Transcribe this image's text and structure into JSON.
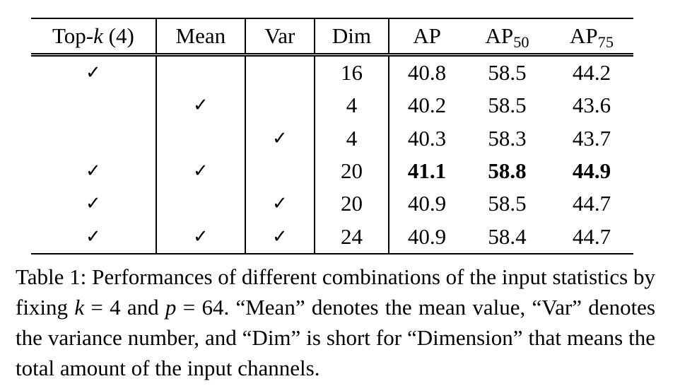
{
  "table": {
    "headers": {
      "topk_prefix": "Top-",
      "topk_var": "k",
      "topk_suffix": " (4)",
      "mean": "Mean",
      "var": "Var",
      "dim": "Dim",
      "ap": "AP",
      "ap50_base": "AP",
      "ap50_sub": "50",
      "ap75_base": "AP",
      "ap75_sub": "75"
    },
    "check_symbol": "✓",
    "rows": [
      {
        "topk": "✓",
        "mean": "",
        "var": "",
        "dim": "16",
        "ap": "40.8",
        "ap50": "58.5",
        "ap75": "44.2",
        "bold": false
      },
      {
        "topk": "",
        "mean": "✓",
        "var": "",
        "dim": "4",
        "ap": "40.2",
        "ap50": "58.5",
        "ap75": "43.6",
        "bold": false
      },
      {
        "topk": "",
        "mean": "",
        "var": "✓",
        "dim": "4",
        "ap": "40.3",
        "ap50": "58.3",
        "ap75": "43.7",
        "bold": false
      },
      {
        "topk": "✓",
        "mean": "✓",
        "var": "",
        "dim": "20",
        "ap": "41.1",
        "ap50": "58.8",
        "ap75": "44.9",
        "bold": true
      },
      {
        "topk": "✓",
        "mean": "",
        "var": "✓",
        "dim": "20",
        "ap": "40.9",
        "ap50": "58.5",
        "ap75": "44.7",
        "bold": false
      },
      {
        "topk": "✓",
        "mean": "✓",
        "var": "✓",
        "dim": "24",
        "ap": "40.9",
        "ap50": "58.4",
        "ap75": "44.7",
        "bold": false
      }
    ]
  },
  "caption": {
    "label": "Table 1:",
    "text_1": " Performances of different combinations of the input statistics by fixing ",
    "math_k": "k",
    "eq_1": " = 4",
    "text_2": " and ",
    "math_p": "p",
    "eq_2": " = 64",
    "text_3": ". “Mean” denotes the mean value, “Var” denotes the variance number, and “Dim” is short for “Dimension” that means the total amount of the input channels."
  }
}
